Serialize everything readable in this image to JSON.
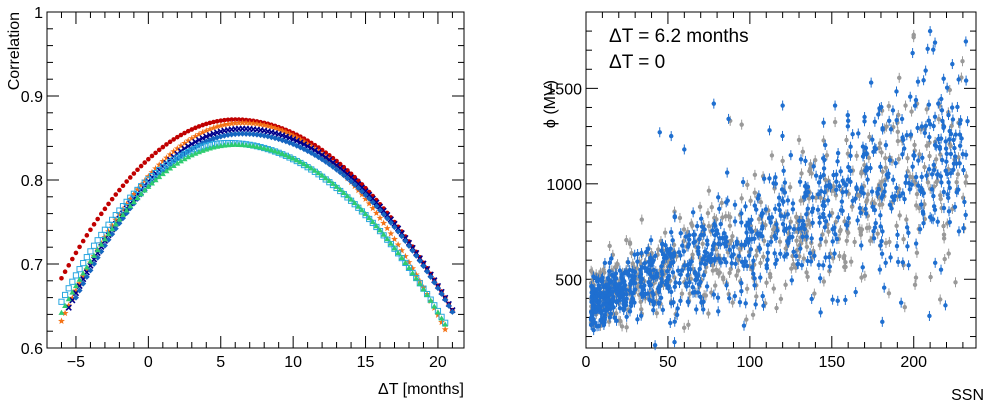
{
  "chart_data": [
    {
      "type": "scatter",
      "xlabel": "ΔT [months]",
      "ylabel": "Correlation",
      "xlim": [
        -7,
        21.8
      ],
      "ylim": [
        0.6,
        1.0
      ],
      "xticks": [
        -5,
        0,
        5,
        10,
        15,
        20
      ],
      "yticks": [
        0.6,
        0.7,
        0.8,
        0.9,
        1.0
      ],
      "ytick_labels": [
        "0.6",
        "0.7",
        "0.8",
        "0.9",
        "1"
      ],
      "series": [
        {
          "color": "#c00000",
          "marker": "circle",
          "x_range": [
            -6,
            21
          ],
          "peak_x": 6.0,
          "peak_y": 0.872,
          "start_y": 0.683,
          "end_y": 0.645
        },
        {
          "color": "#f47216",
          "marker": "star",
          "x_range": [
            -6,
            20.5
          ],
          "peak_x": 6.5,
          "peak_y": 0.868,
          "start_y": 0.632,
          "end_y": 0.622
        },
        {
          "color": "#00008b",
          "marker": "cross",
          "x_range": [
            -5.5,
            21
          ],
          "peak_x": 6.5,
          "peak_y": 0.861,
          "start_y": 0.648,
          "end_y": 0.645
        },
        {
          "color": "#1565c0",
          "marker": "diamond",
          "x_range": [
            -5,
            21
          ],
          "peak_x": 6.5,
          "peak_y": 0.855,
          "start_y": 0.66,
          "end_y": 0.643
        },
        {
          "color": "#29a6e0",
          "marker": "square",
          "x_range": [
            -6,
            20.5
          ],
          "peak_x": 5.5,
          "peak_y": 0.844,
          "start_y": 0.655,
          "end_y": 0.63
        },
        {
          "color": "#2ecc71",
          "marker": "triangle",
          "x_range": [
            -6,
            20.5
          ],
          "peak_x": 6.0,
          "peak_y": 0.842,
          "start_y": 0.642,
          "end_y": 0.628
        }
      ]
    },
    {
      "type": "scatter",
      "xlabel": "SSN",
      "ylabel": "ϕ (MV)",
      "xlim": [
        0,
        238
      ],
      "ylim": [
        140,
        1900
      ],
      "xticks": [
        0,
        50,
        100,
        150,
        200
      ],
      "yticks": [
        500,
        1000,
        1500
      ],
      "legend_position": "top-left",
      "series": [
        {
          "name": "ΔT = 6.2 months",
          "color": "#1f6fd0",
          "trend": {
            "intercept": 360,
            "slope": 3.4
          },
          "count": 900
        },
        {
          "name": "ΔT = 0",
          "color": "#999999",
          "trend": {
            "intercept": 380,
            "slope": 3.2
          },
          "count": 620
        }
      ],
      "outliers": {
        "blue": [
          [
            45,
            1270
          ],
          [
            52,
            1250
          ],
          [
            60,
            1180
          ],
          [
            78,
            1420
          ],
          [
            87,
            1340
          ],
          [
            112,
            1280
          ],
          [
            120,
            1410
          ],
          [
            125,
            1150
          ],
          [
            145,
            1320
          ],
          [
            152,
            1410
          ],
          [
            160,
            1330
          ],
          [
            170,
            1350
          ],
          [
            185,
            1330
          ],
          [
            205,
            1300
          ],
          [
            210,
            1800
          ],
          [
            213,
            1740
          ],
          [
            215,
            1420
          ]
        ],
        "gray": [
          [
            88,
            1330
          ],
          [
            95,
            1310
          ],
          [
            120,
            1120
          ],
          [
            130,
            1230
          ],
          [
            190,
            1320
          ],
          [
            195,
            1410
          ],
          [
            200,
            1780
          ],
          [
            202,
            1420
          ],
          [
            208,
            1390
          ]
        ]
      }
    }
  ]
}
